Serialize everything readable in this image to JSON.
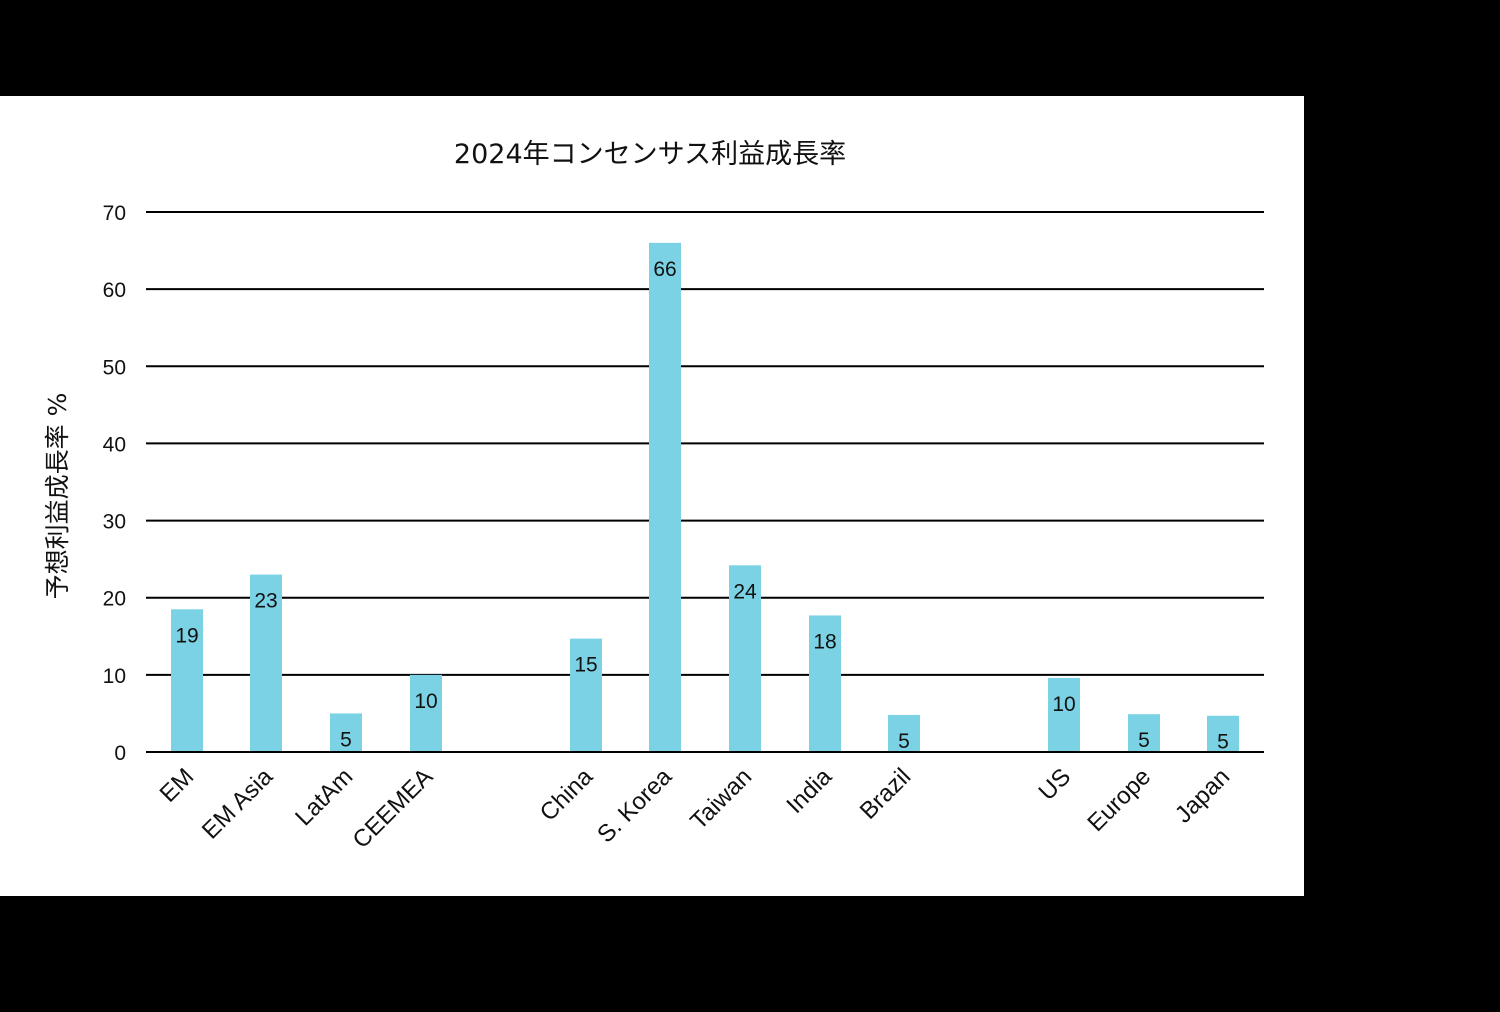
{
  "chart_data": {
    "type": "bar",
    "title": "2024年コンセンサス利益成長率",
    "xlabel": "",
    "ylabel": "予想利益成長率 %",
    "ylim": [
      0,
      70
    ],
    "yticks": [
      0,
      10,
      20,
      30,
      40,
      50,
      60,
      70
    ],
    "grid": true,
    "legend": null,
    "bar_color": "#7ad2e4",
    "categories": [
      "EM",
      "EM Asia",
      "LatAm",
      "CEEMEA",
      "China",
      "S. Korea",
      "Taiwan",
      "India",
      "Brazil",
      "US",
      "Europe",
      "Japan"
    ],
    "values": [
      18.5,
      23,
      5,
      10,
      14.7,
      66,
      24.2,
      17.7,
      4.8,
      9.6,
      4.9,
      4.7
    ],
    "data_labels": [
      "19",
      "23",
      "5",
      "10",
      "15",
      "66",
      "24",
      "18",
      "5",
      "10",
      "5",
      "5"
    ],
    "groups": [
      [
        "EM",
        "EM Asia",
        "LatAm",
        "CEEMEA"
      ],
      [
        "China",
        "S. Korea",
        "Taiwan",
        "India",
        "Brazil"
      ],
      [
        "US",
        "Europe",
        "Japan"
      ]
    ]
  }
}
